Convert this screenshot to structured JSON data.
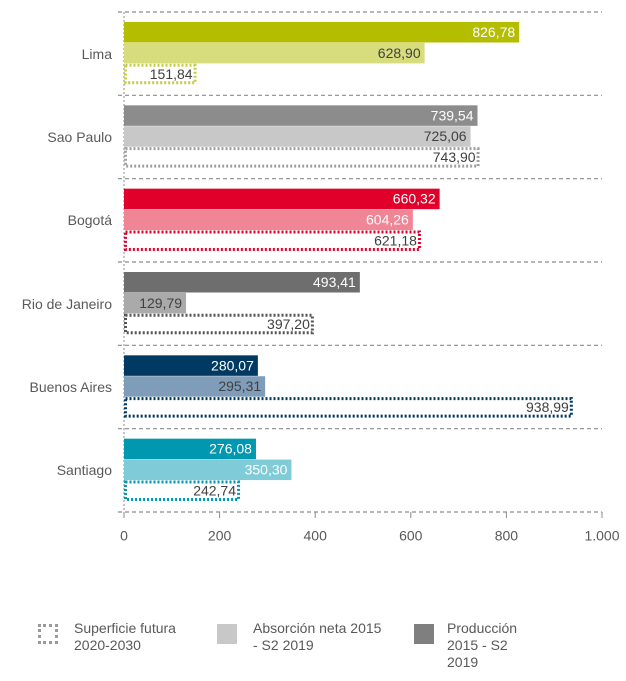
{
  "chart_data": {
    "type": "hbar",
    "categories": [
      "Lima",
      "Sao Paulo",
      "Bogotá",
      "Rio de Janeiro",
      "Buenos Aires",
      "Santiago"
    ],
    "series": [
      {
        "name": "Producción 2015 - S2 2019",
        "color": "#7f7f7f",
        "style": "solid",
        "colors": [
          "#b5bd00",
          "#8c8c8c",
          "#e0002a",
          "#6e6e6e",
          "#003a63",
          "#0097b0"
        ],
        "label_colors": [
          "#ffffff",
          "#ffffff",
          "#ffffff",
          "#ffffff",
          "#ffffff",
          "#ffffff"
        ],
        "values": [
          826.78,
          739.54,
          660.32,
          493.41,
          280.07,
          276.08
        ],
        "value_labels": [
          "826,78",
          "739,54",
          "660,32",
          "493,41",
          "280,07",
          "276,08"
        ]
      },
      {
        "name": "Absorción neta 2015 - S2 2019",
        "color": "#c8c8c8",
        "style": "solid",
        "colors": [
          "#d7dd7d",
          "#c8c8c8",
          "#ef8595",
          "#aaaaaa",
          "#7f9cb9",
          "#80cbd8"
        ],
        "label_colors": [
          "#404040",
          "#404040",
          "#ffffff",
          "#404040",
          "#404040",
          "#ffffff"
        ],
        "values": [
          628.9,
          725.06,
          604.26,
          129.79,
          295.31,
          350.3
        ],
        "value_labels": [
          "628,90",
          "725,06",
          "604,26",
          "129,79",
          "295,31",
          "350,30"
        ]
      },
      {
        "name": "Superficie futura 2020-2030",
        "color": "#9a9a9a",
        "style": "dotted",
        "colors": [
          "#c8cc40",
          "#a0a0a0",
          "#e0002a",
          "#555555",
          "#003a63",
          "#0097b0"
        ],
        "label_colors": [
          "#404040",
          "#404040",
          "#404040",
          "#404040",
          "#404040",
          "#404040"
        ],
        "values": [
          151.84,
          743.9,
          621.18,
          397.2,
          938.99,
          242.74
        ],
        "value_labels": [
          "151,84",
          "743,90",
          "621,18",
          "397,20",
          "938,99",
          "242,74"
        ]
      }
    ],
    "xlim": [
      0,
      1000
    ],
    "xticks": [
      0,
      200,
      400,
      600,
      800,
      {
        "value": 1000,
        "label": "1.000"
      }
    ]
  }
}
